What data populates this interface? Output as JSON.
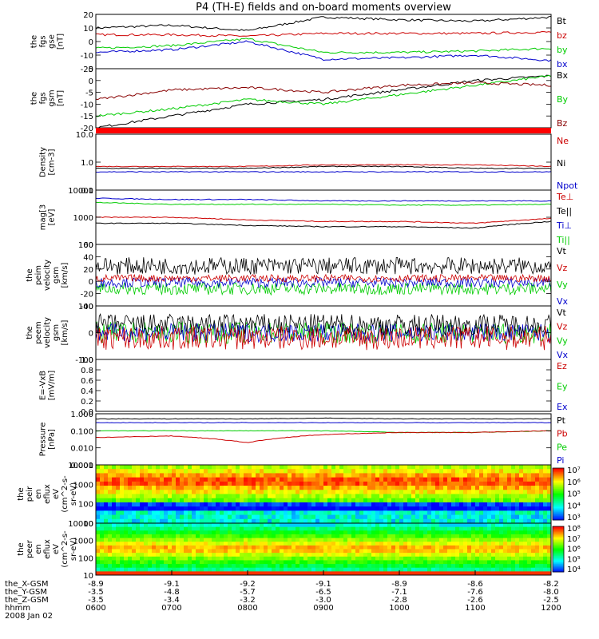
{
  "title": "P4 (TH-E) fields and on-board moments overview",
  "panels": [
    {
      "id": "fgs-gse",
      "ylabel": [
        "the",
        "fgs",
        "gse",
        "[nT]"
      ],
      "top": 18,
      "bottom": 86,
      "ylim": [
        -20,
        20
      ],
      "yticks": [
        "20",
        "10",
        "0",
        "-10",
        "-20"
      ],
      "legend": [
        {
          "text": "Bt",
          "color": "#000000"
        },
        {
          "text": "bz",
          "color": "#cc0000"
        },
        {
          "text": "by",
          "color": "#00cc00"
        },
        {
          "text": "bx",
          "color": "#0000cc"
        }
      ]
    },
    {
      "id": "fgs-gsm",
      "ylabel": [
        "the",
        "fgs",
        "gsm",
        "[nT]"
      ],
      "ylim": [
        -20,
        5
      ],
      "yticks": [
        "5",
        "0",
        "-5",
        "-10",
        "-15",
        "-20"
      ],
      "legend": [
        {
          "text": "Bx",
          "color": "#000000"
        },
        {
          "text": "By",
          "color": "#00cc00"
        },
        {
          "text": "Bz",
          "color": "#880000"
        }
      ]
    },
    {
      "id": "density",
      "ylabel": [
        "Density",
        "[cm-3]"
      ],
      "ylim": [
        0.1,
        10
      ],
      "log": true,
      "yticks": [
        "10.0",
        "1.0",
        "0.1"
      ],
      "legend": [
        {
          "text": "Ne",
          "color": "#cc0000"
        },
        {
          "text": "Ni",
          "color": "#000000"
        },
        {
          "text": "Npot",
          "color": "#0000cc"
        }
      ]
    },
    {
      "id": "temperature",
      "ylabel": [
        "mag[3",
        "[eV]"
      ],
      "ylim": [
        100,
        10000
      ],
      "log": true,
      "yticks": [
        "10000",
        "1000",
        "100"
      ],
      "legend": [
        {
          "text": "Te⊥",
          "color": "#cc0000"
        },
        {
          "text": "Te||",
          "color": "#000000"
        },
        {
          "text": "Ti⊥",
          "color": "#0000cc"
        },
        {
          "text": "Ti||",
          "color": "#00cc00"
        }
      ]
    },
    {
      "id": "peim-velocity",
      "ylabel": [
        "the",
        "peim",
        "velocity",
        "gsm",
        "[km/s]"
      ],
      "ylim": [
        -40,
        60
      ],
      "yticks": [
        "60",
        "40",
        "20",
        "0",
        "-20",
        "-40"
      ],
      "legend": [
        {
          "text": "Vt",
          "color": "#000000"
        },
        {
          "text": "Vz",
          "color": "#cc0000"
        },
        {
          "text": "Vy",
          "color": "#00cc00"
        },
        {
          "text": "Vx",
          "color": "#0000cc"
        }
      ]
    },
    {
      "id": "peem-velocity",
      "ylabel": [
        "the",
        "peem",
        "velocity",
        "gsm",
        "[km/s]"
      ],
      "ylim": [
        -100,
        100
      ],
      "yticks": [
        "100",
        "0",
        "-100"
      ],
      "legend": [
        {
          "text": "Vt",
          "color": "#000000"
        },
        {
          "text": "Vz",
          "color": "#cc0000"
        },
        {
          "text": "Vy",
          "color": "#00cc00"
        },
        {
          "text": "Vx",
          "color": "#0000cc"
        }
      ]
    },
    {
      "id": "efield",
      "ylabel": [
        "E=-VxB",
        "[mV/m]"
      ],
      "ylim": [
        0,
        1
      ],
      "yticks": [
        "1.0",
        "0.8",
        "0.6",
        "0.4",
        "0.2",
        "0.0"
      ],
      "legend": [
        {
          "text": "Ez",
          "color": "#cc0000"
        },
        {
          "text": "Ey",
          "color": "#00cc00"
        },
        {
          "text": "Ex",
          "color": "#0000cc"
        }
      ]
    },
    {
      "id": "pressure",
      "ylabel": [
        "Pressure",
        "[nPa]"
      ],
      "ylim": [
        0.001,
        1
      ],
      "log": true,
      "yticks": [
        "1.000",
        "0.100",
        "0.010",
        "0.001"
      ],
      "legend": [
        {
          "text": "Pt",
          "color": "#000000"
        },
        {
          "text": "Pb",
          "color": "#cc0000"
        },
        {
          "text": "Pe",
          "color": "#00cc00"
        },
        {
          "text": "Pi",
          "color": "#0000cc"
        }
      ]
    },
    {
      "id": "peir-eflux",
      "ylabel": [
        "the",
        "peir",
        "en",
        "eflux",
        "eV",
        "(cm^2-s-",
        "sr-eV)"
      ],
      "yticks": [
        "10000",
        "1000",
        "100",
        "10"
      ],
      "cbar": [
        "10⁷",
        "10⁶",
        "10⁵",
        "10⁴",
        "10³"
      ]
    },
    {
      "id": "peer-eflux",
      "ylabel": [
        "the",
        "peer",
        "en",
        "eflux",
        "eV",
        "(cm^2-s-",
        "sr-eV)"
      ],
      "yticks": [
        "10000",
        "1000",
        "100",
        "10"
      ],
      "cbar": [
        "10⁸",
        "10⁷",
        "10⁶",
        "10⁵",
        "10⁴"
      ]
    }
  ],
  "footer": {
    "rows": [
      {
        "label": "the_X-GSM",
        "values": [
          "-8.9",
          "-9.1",
          "-9.2",
          "-9.1",
          "-8.9",
          "-8.6",
          "-8.2"
        ]
      },
      {
        "label": "the_Y-GSM",
        "values": [
          "-3.5",
          "-4.8",
          "-5.7",
          "-6.5",
          "-7.1",
          "-7.6",
          "-8.0"
        ]
      },
      {
        "label": "the_Z-GSM",
        "values": [
          "-3.5",
          "-3.4",
          "-3.2",
          "-3.0",
          "-2.8",
          "-2.6",
          "-2.5"
        ]
      },
      {
        "label": "hhmm",
        "values": [
          "0600",
          "0700",
          "0800",
          "0900",
          "1000",
          "1100",
          "1200"
        ]
      }
    ],
    "date": "2008 Jan 02"
  },
  "chart_data": {
    "type": "line",
    "title": "P4 (TH-E) fields and on-board moments overview",
    "x": [
      "0600",
      "0700",
      "0800",
      "0900",
      "1000",
      "1100",
      "1200"
    ],
    "xlabel": "hhmm",
    "series_summary": [
      {
        "panel": "fgs-gse",
        "name": "Bt",
        "values": [
          10,
          12,
          8,
          18,
          16,
          15,
          18
        ]
      },
      {
        "panel": "fgs-gse",
        "name": "bz",
        "values": [
          5,
          5,
          4,
          6,
          6,
          6,
          7
        ]
      },
      {
        "panel": "fgs-gse",
        "name": "by",
        "values": [
          -5,
          -3,
          2,
          -8,
          -8,
          -7,
          -5
        ]
      },
      {
        "panel": "fgs-gse",
        "name": "bx",
        "values": [
          -8,
          -6,
          0,
          -13,
          -12,
          -10,
          -14
        ]
      },
      {
        "panel": "fgs-gsm",
        "name": "Bx",
        "values": [
          -20,
          -15,
          -10,
          -8,
          -4,
          0,
          2
        ]
      },
      {
        "panel": "fgs-gsm",
        "name": "By",
        "values": [
          -15,
          -12,
          -8,
          -10,
          -6,
          -2,
          2
        ]
      },
      {
        "panel": "fgs-gsm",
        "name": "Bz",
        "values": [
          -8,
          -4,
          -3,
          -5,
          -2,
          -1,
          -2
        ]
      },
      {
        "panel": "density",
        "name": "Ne",
        "values": [
          0.7,
          0.7,
          0.7,
          0.8,
          0.8,
          0.8,
          0.7
        ]
      },
      {
        "panel": "density",
        "name": "Ni",
        "values": [
          0.6,
          0.6,
          0.6,
          0.7,
          0.7,
          0.6,
          0.6
        ]
      },
      {
        "panel": "density",
        "name": "Npot",
        "values": [
          0.45,
          0.45,
          0.45,
          0.45,
          0.45,
          0.45,
          0.45
        ]
      },
      {
        "panel": "temperature",
        "name": "Ti⊥",
        "values": [
          5000,
          4500,
          4500,
          4000,
          4000,
          4000,
          4000
        ]
      },
      {
        "panel": "temperature",
        "name": "Ti||",
        "values": [
          3500,
          3000,
          3000,
          3000,
          2800,
          2800,
          3000
        ]
      },
      {
        "panel": "temperature",
        "name": "Te⊥",
        "values": [
          1000,
          1000,
          800,
          700,
          700,
          600,
          900
        ]
      },
      {
        "panel": "temperature",
        "name": "Te||",
        "values": [
          600,
          600,
          500,
          450,
          450,
          400,
          700
        ]
      },
      {
        "panel": "pressure",
        "name": "Pt",
        "values": [
          0.5,
          0.5,
          0.5,
          0.55,
          0.5,
          0.5,
          0.5
        ]
      },
      {
        "panel": "pressure",
        "name": "Pi",
        "values": [
          0.3,
          0.3,
          0.3,
          0.3,
          0.3,
          0.3,
          0.3
        ]
      },
      {
        "panel": "pressure",
        "name": "Pe",
        "values": [
          0.1,
          0.1,
          0.1,
          0.1,
          0.08,
          0.08,
          0.1
        ]
      },
      {
        "panel": "pressure",
        "name": "Pb",
        "values": [
          0.04,
          0.05,
          0.02,
          0.06,
          0.08,
          0.08,
          0.1
        ]
      }
    ]
  }
}
